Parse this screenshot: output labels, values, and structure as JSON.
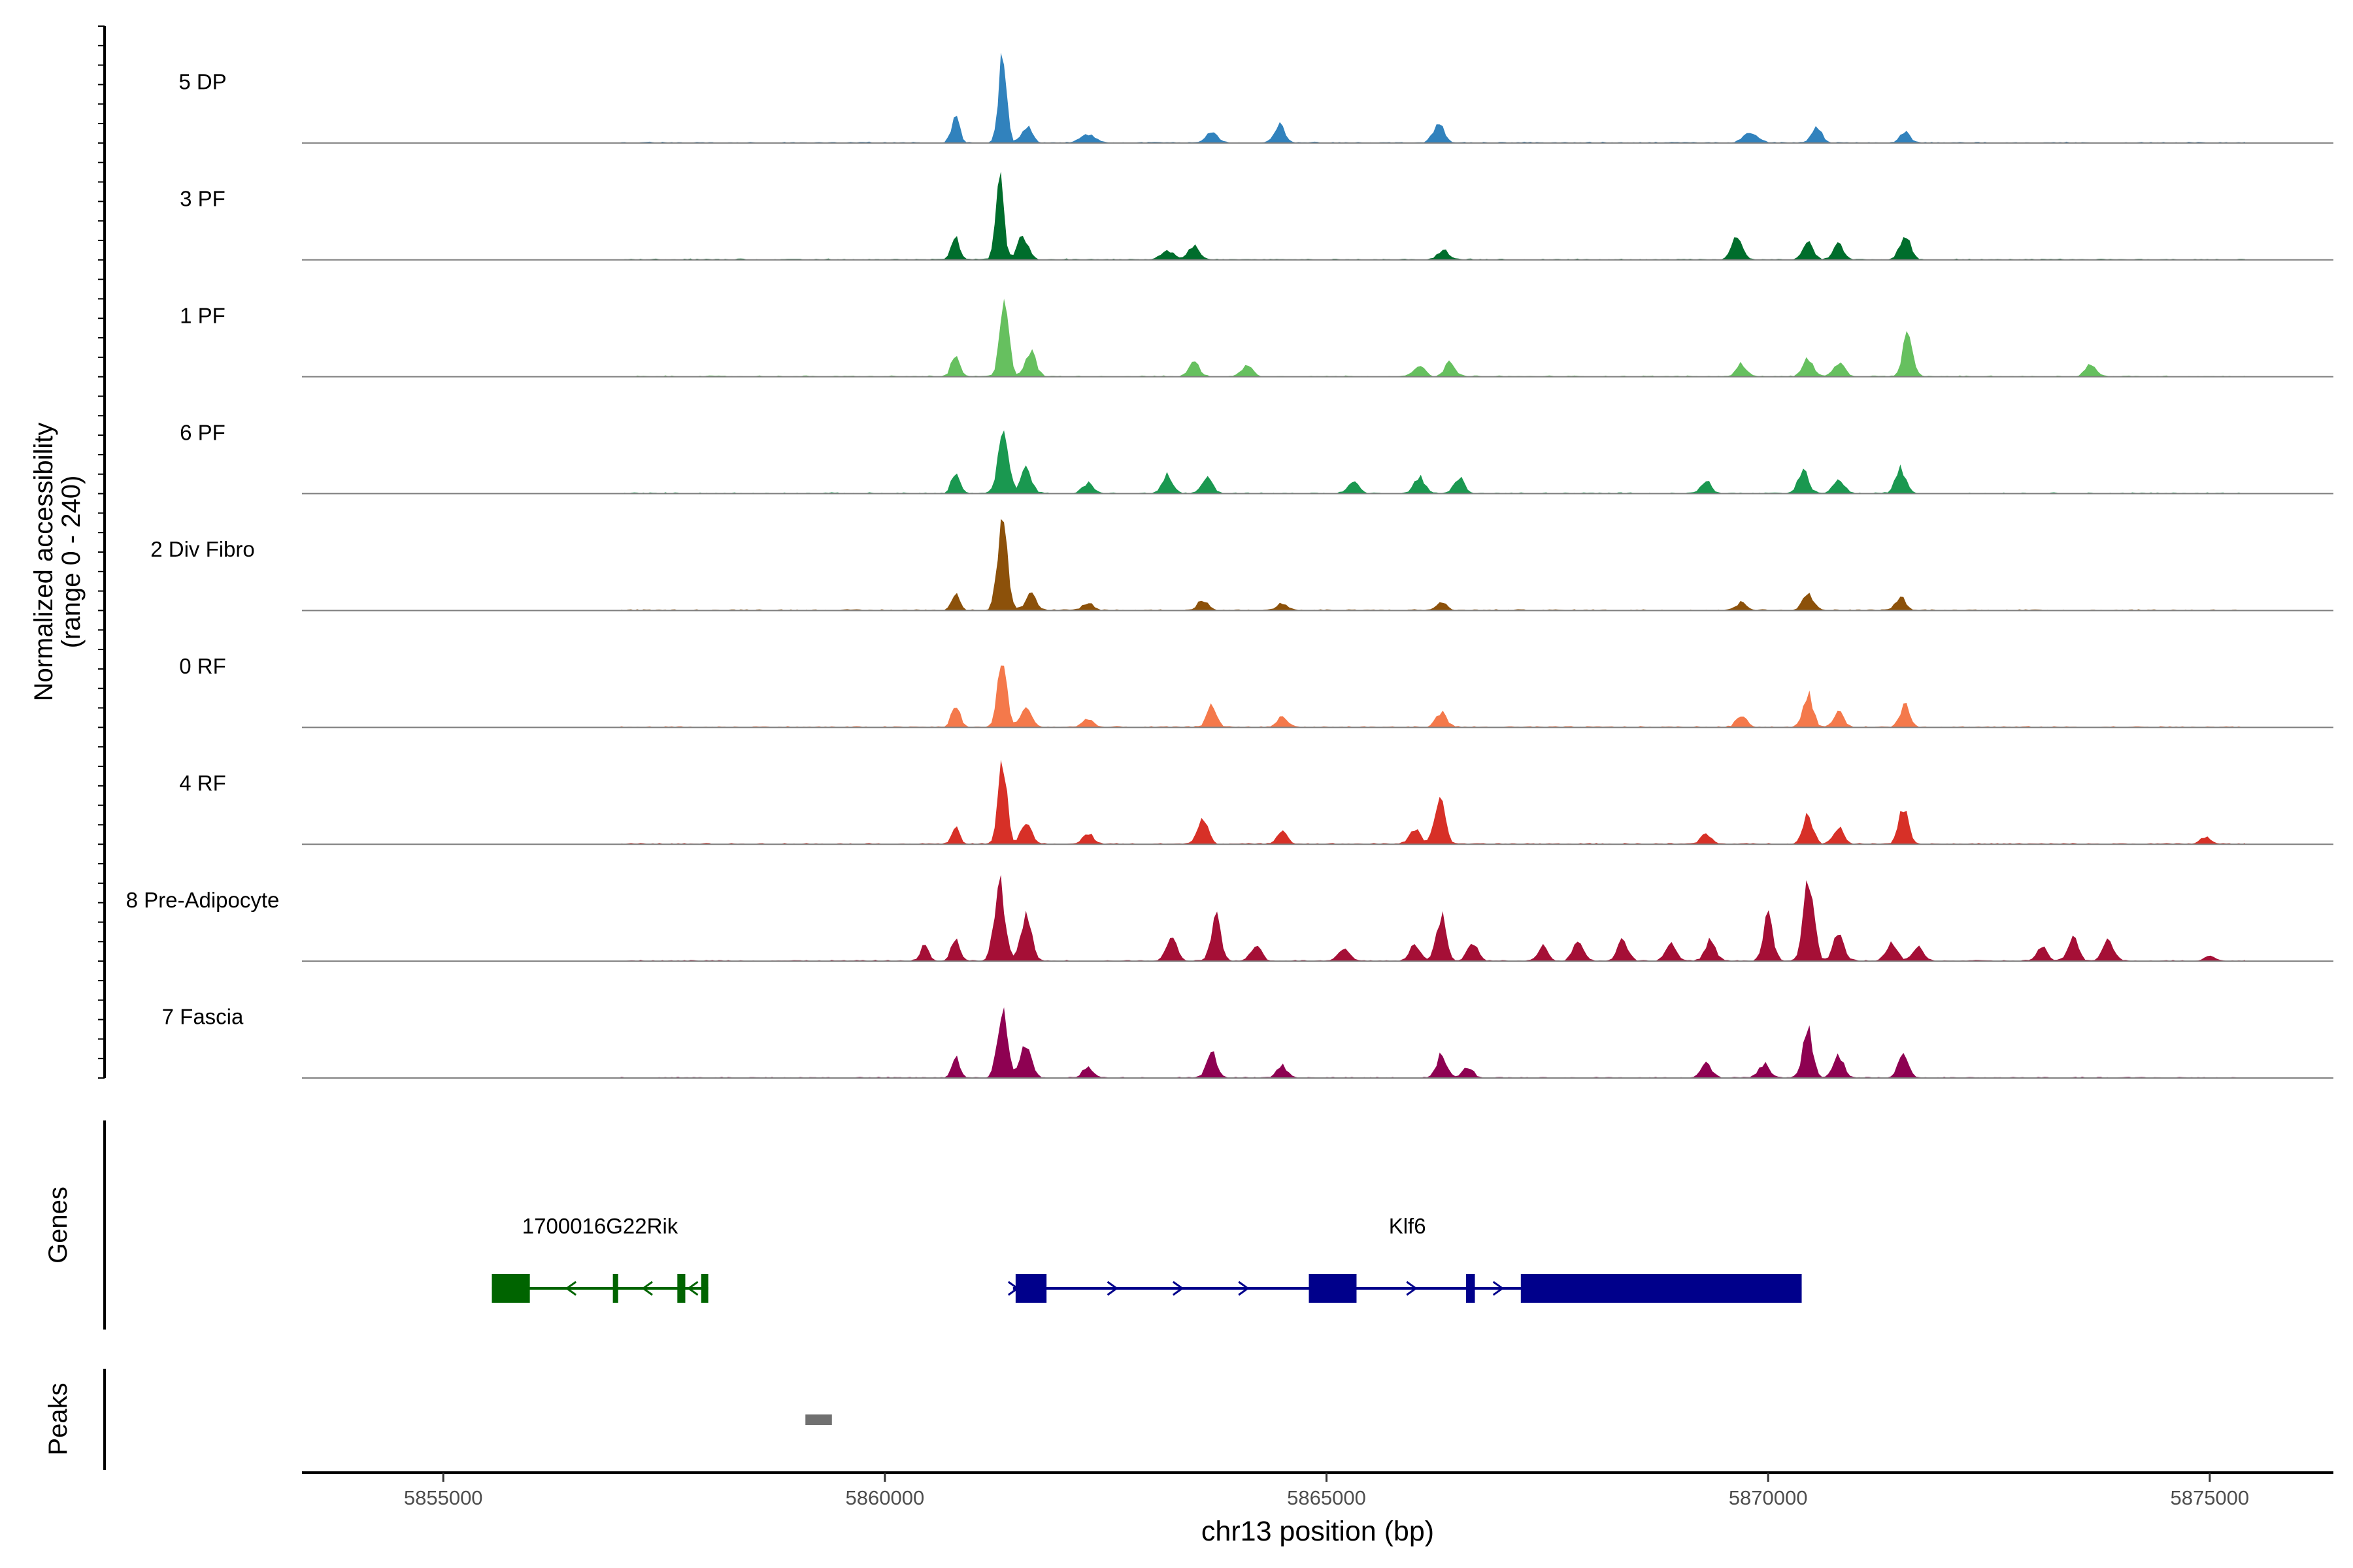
{
  "chart_data": {
    "type": "area",
    "title": "",
    "y_title_line1": "Normalized accessibility",
    "y_title_line2": "(range 0 - 240)",
    "yrange": [
      0,
      240
    ],
    "xlabel": "chr13 position (bp)",
    "xlim": [
      5853400,
      5876400
    ],
    "xticks": [
      5855000,
      5860000,
      5865000,
      5870000,
      5875000
    ],
    "xtick_labels": [
      "5855000",
      "5860000",
      "5865000",
      "5870000",
      "5875000"
    ],
    "track_extent": [
      5853400,
      5875400
    ],
    "panels": {
      "genes": "Genes",
      "peaks": "Peaks"
    },
    "series": [
      {
        "name": "5 DP",
        "color": "#3182BD",
        "peaks": [
          [
            5860800,
            70,
            45
          ],
          [
            5861330,
            220,
            45
          ],
          [
            5861600,
            40,
            60
          ],
          [
            5862300,
            22,
            80
          ],
          [
            5863700,
            30,
            60
          ],
          [
            5864470,
            45,
            60
          ],
          [
            5866270,
            50,
            60
          ],
          [
            5869800,
            26,
            80
          ],
          [
            5870550,
            35,
            60
          ],
          [
            5871550,
            30,
            50
          ]
        ]
      },
      {
        "name": "3 PF",
        "color": "#006D2C",
        "peaks": [
          [
            5860800,
            60,
            45
          ],
          [
            5861300,
            210,
            45
          ],
          [
            5861560,
            55,
            60
          ],
          [
            5863200,
            22,
            80
          ],
          [
            5863500,
            35,
            60
          ],
          [
            5866320,
            25,
            60
          ],
          [
            5869650,
            55,
            60
          ],
          [
            5870450,
            45,
            60
          ],
          [
            5870800,
            38,
            60
          ],
          [
            5871550,
            60,
            60
          ]
        ]
      },
      {
        "name": "1 PF",
        "color": "#66C05F",
        "peaks": [
          [
            5860800,
            60,
            45
          ],
          [
            5861350,
            200,
            50
          ],
          [
            5861650,
            60,
            60
          ],
          [
            5863500,
            35,
            60
          ],
          [
            5864100,
            28,
            60
          ],
          [
            5866050,
            28,
            60
          ],
          [
            5866400,
            35,
            60
          ],
          [
            5869700,
            30,
            60
          ],
          [
            5870450,
            45,
            60
          ],
          [
            5870800,
            35,
            60
          ],
          [
            5871580,
            110,
            55
          ],
          [
            5873650,
            30,
            60
          ]
        ]
      },
      {
        "name": "6 PF",
        "color": "#1A9850",
        "peaks": [
          [
            5860800,
            55,
            45
          ],
          [
            5861340,
            140,
            60
          ],
          [
            5861600,
            60,
            60
          ],
          [
            5862300,
            25,
            60
          ],
          [
            5863200,
            45,
            60
          ],
          [
            5863650,
            40,
            60
          ],
          [
            5865300,
            30,
            60
          ],
          [
            5866050,
            40,
            60
          ],
          [
            5866500,
            40,
            60
          ],
          [
            5869300,
            30,
            60
          ],
          [
            5870400,
            55,
            60
          ],
          [
            5870800,
            35,
            60
          ],
          [
            5871500,
            60,
            60
          ]
        ]
      },
      {
        "name": "2 Div Fibro",
        "color": "#8C510A",
        "peaks": [
          [
            5860800,
            45,
            45
          ],
          [
            5861330,
            220,
            55
          ],
          [
            5861650,
            40,
            60
          ],
          [
            5862300,
            18,
            60
          ],
          [
            5863600,
            25,
            60
          ],
          [
            5864500,
            18,
            60
          ],
          [
            5866300,
            18,
            60
          ],
          [
            5869700,
            20,
            60
          ],
          [
            5870450,
            40,
            60
          ],
          [
            5871500,
            30,
            60
          ]
        ]
      },
      {
        "name": "0 RF",
        "color": "#F4794B",
        "peaks": [
          [
            5860800,
            60,
            45
          ],
          [
            5861330,
            190,
            50
          ],
          [
            5861600,
            50,
            60
          ],
          [
            5862300,
            20,
            60
          ],
          [
            5863700,
            55,
            55
          ],
          [
            5864500,
            25,
            60
          ],
          [
            5866300,
            35,
            60
          ],
          [
            5869700,
            30,
            60
          ],
          [
            5870450,
            85,
            55
          ],
          [
            5870800,
            35,
            60
          ],
          [
            5871550,
            55,
            55
          ]
        ]
      },
      {
        "name": "4 RF",
        "color": "#D73027",
        "peaks": [
          [
            5860800,
            40,
            45
          ],
          [
            5861330,
            200,
            50
          ],
          [
            5861600,
            55,
            60
          ],
          [
            5862300,
            25,
            60
          ],
          [
            5863600,
            60,
            60
          ],
          [
            5864500,
            30,
            60
          ],
          [
            5866280,
            110,
            60
          ],
          [
            5866000,
            40,
            60
          ],
          [
            5869300,
            25,
            60
          ],
          [
            5870450,
            80,
            55
          ],
          [
            5870800,
            40,
            60
          ],
          [
            5871530,
            95,
            55
          ],
          [
            5874950,
            18,
            60
          ]
        ]
      },
      {
        "name": "8 Pre-Adipocyte",
        "color": "#A50F36",
        "peaks": [
          [
            5860450,
            40,
            45
          ],
          [
            5860800,
            60,
            45
          ],
          [
            5861300,
            190,
            60
          ],
          [
            5861600,
            110,
            60
          ],
          [
            5863250,
            60,
            60
          ],
          [
            5863750,
            110,
            55
          ],
          [
            5864200,
            40,
            60
          ],
          [
            5865200,
            35,
            60
          ],
          [
            5866000,
            40,
            60
          ],
          [
            5866300,
            110,
            55
          ],
          [
            5866650,
            45,
            60
          ],
          [
            5867450,
            35,
            60
          ],
          [
            5867850,
            45,
            60
          ],
          [
            5868350,
            50,
            60
          ],
          [
            5868900,
            45,
            60
          ],
          [
            5869350,
            50,
            60
          ],
          [
            5870000,
            110,
            55
          ],
          [
            5870460,
            190,
            60
          ],
          [
            5870800,
            65,
            60
          ],
          [
            5871400,
            50,
            60
          ],
          [
            5871700,
            35,
            60
          ],
          [
            5873100,
            35,
            60
          ],
          [
            5873450,
            55,
            60
          ],
          [
            5873850,
            50,
            60
          ],
          [
            5875000,
            12,
            60
          ]
        ]
      },
      {
        "name": "7 Fascia",
        "color": "#8E0152",
        "peaks": [
          [
            5860800,
            50,
            45
          ],
          [
            5861330,
            180,
            55
          ],
          [
            5861600,
            90,
            60
          ],
          [
            5862300,
            25,
            60
          ],
          [
            5863700,
            70,
            55
          ],
          [
            5864500,
            30,
            60
          ],
          [
            5866300,
            55,
            60
          ],
          [
            5866600,
            25,
            60
          ],
          [
            5869300,
            35,
            60
          ],
          [
            5869950,
            35,
            60
          ],
          [
            5870450,
            120,
            55
          ],
          [
            5870800,
            55,
            60
          ],
          [
            5871530,
            65,
            55
          ]
        ]
      }
    ],
    "genes": [
      {
        "name": "1700016G22Rik",
        "color": "#006400",
        "strand": "-",
        "start": 5855550,
        "end": 5858000,
        "exons": [
          [
            5855550,
            5855980
          ],
          [
            5856920,
            5856980
          ],
          [
            5857650,
            5857740
          ],
          [
            5857920,
            5858000
          ]
        ]
      },
      {
        "name": "Klf6",
        "color": "#00008B",
        "strand": "+",
        "start": 5861450,
        "end": 5870380,
        "exons": [
          [
            5861480,
            5861830
          ],
          [
            5864800,
            5865340
          ],
          [
            5866580,
            5866680
          ],
          [
            5867200,
            5870380
          ]
        ]
      }
    ],
    "peak_regions": [
      {
        "start": 5859100,
        "end": 5859400,
        "color": "#707070"
      }
    ]
  }
}
